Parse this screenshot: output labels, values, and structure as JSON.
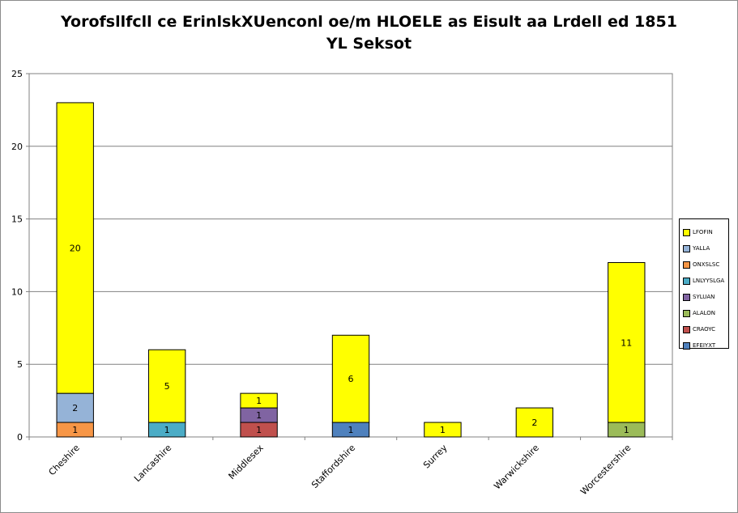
{
  "chart_data": {
    "type": "bar",
    "stacked": true,
    "title_lines": [
      "Yorofsllfcll ce ErinlskXUenconl oe/m HLOELE as Eisult aa Lrdell ed 1851",
      "YL Seksot"
    ],
    "xlabel": "",
    "ylabel": "",
    "ylim": [
      0,
      25
    ],
    "yticks": [
      0,
      5,
      10,
      15,
      20,
      25
    ],
    "grid": true,
    "legend_position": "right",
    "categories": [
      "Cheshire",
      "Lancashire",
      "Middlesex",
      "Staffordshire",
      "Surrey",
      "Warwickshire",
      "Worcestershire"
    ],
    "series": [
      {
        "name": "EFEIYXT",
        "color": "#4f81bd",
        "values": [
          0,
          0,
          0,
          1,
          0,
          0,
          0
        ]
      },
      {
        "name": "CRAOYC",
        "color": "#c0504d",
        "values": [
          0,
          0,
          1,
          0,
          0,
          0,
          0
        ]
      },
      {
        "name": "ALALON",
        "color": "#9bbb59",
        "values": [
          0,
          0,
          0,
          0,
          0,
          0,
          1
        ]
      },
      {
        "name": "SYLUAN",
        "color": "#8064a2",
        "values": [
          0,
          0,
          1,
          0,
          0,
          0,
          0
        ]
      },
      {
        "name": "LNLYYSLGA",
        "color": "#4bacc6",
        "values": [
          0,
          1,
          0,
          0,
          0,
          0,
          0
        ]
      },
      {
        "name": "ONXSLSC",
        "color": "#f79646",
        "values": [
          1,
          0,
          0,
          0,
          0,
          0,
          0
        ]
      },
      {
        "name": "YALLA",
        "color": "#95b3d7",
        "values": [
          2,
          0,
          0,
          0,
          0,
          0,
          0
        ]
      },
      {
        "name": "LFOFIN",
        "color": "#ffff00",
        "values": [
          20,
          5,
          1,
          6,
          1,
          2,
          11
        ]
      }
    ]
  }
}
